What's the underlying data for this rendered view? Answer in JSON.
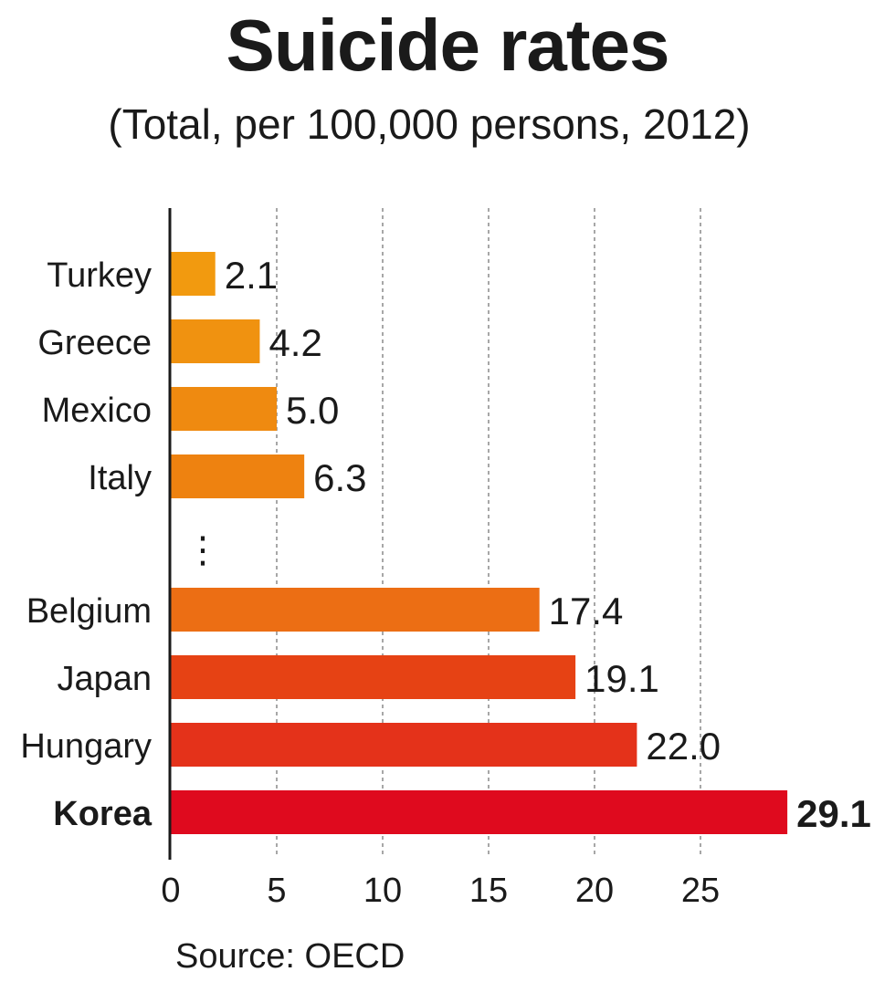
{
  "chart_data": {
    "type": "bar",
    "orientation": "horizontal",
    "title": "Suicide rates",
    "subtitle": "(Total, per 100,000 persons, 2012)",
    "categories": [
      "Turkey",
      "Greece",
      "Mexico",
      "Italy",
      "Belgium",
      "Japan",
      "Hungary",
      "Korea"
    ],
    "values": [
      2.1,
      4.2,
      5.0,
      6.3,
      17.4,
      19.1,
      22.0,
      29.1
    ],
    "value_labels": [
      "2.1",
      "4.2",
      "5.0",
      "6.3",
      "17.4",
      "19.1",
      "22.0",
      "29.1"
    ],
    "highlighted_category": "Korea",
    "omission_marker": "⋮",
    "bar_colors": [
      "#f29a0f",
      "#f09210",
      "#ef8a10",
      "#ee8210",
      "#ec6e14",
      "#e64214",
      "#e4321a",
      "#df0a1e"
    ],
    "xlim": [
      0,
      29.1
    ],
    "x_ticks": [
      0,
      5,
      10,
      15,
      20,
      25
    ],
    "xlabel": "",
    "ylabel": "",
    "gridlines": "vertical dashed",
    "legend": "none",
    "source": "Source: OECD"
  }
}
